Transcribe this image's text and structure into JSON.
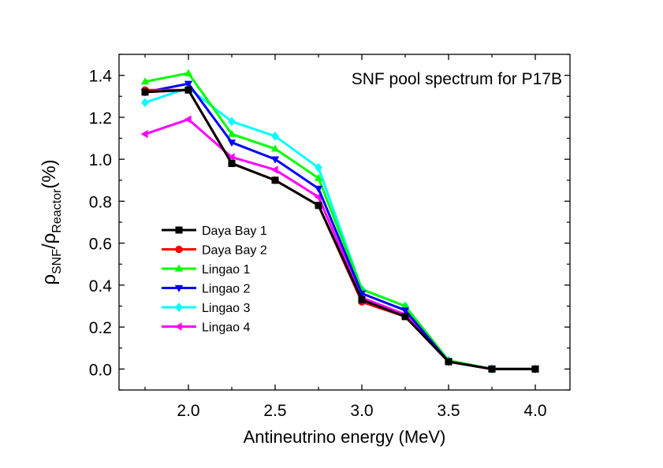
{
  "chart_data": {
    "type": "line",
    "title": "",
    "annotation": "SNF pool spectrum for P17B",
    "xlabel": "Antineutrino energy (MeV)",
    "ylabel": {
      "rho1": "ρ",
      "sub1": "SNF",
      "slash": "/",
      "rho2": "ρ",
      "sub2": "Reactor",
      "unit": "(%)"
    },
    "xlim": [
      1.6,
      4.2
    ],
    "ylim": [
      -0.1,
      1.5
    ],
    "xticks": [
      "2.0",
      "2.5",
      "3.0",
      "3.5",
      "4.0"
    ],
    "yticks": [
      "0.0",
      "0.2",
      "0.4",
      "0.6",
      "0.8",
      "1.0",
      "1.2",
      "1.4"
    ],
    "grid": false,
    "legend_position": "center-left",
    "x": [
      1.75,
      2.0,
      2.25,
      2.5,
      2.75,
      3.0,
      3.25,
      3.5,
      3.75,
      4.0
    ],
    "series": [
      {
        "name": "Daya Bay 1",
        "color": "#000000",
        "marker": "square",
        "values": [
          1.32,
          1.33,
          0.98,
          0.9,
          0.78,
          0.33,
          0.25,
          0.035,
          0.0,
          0.0
        ]
      },
      {
        "name": "Daya Bay 2",
        "color": "#ff0000",
        "marker": "circle",
        "values": [
          1.33,
          1.33,
          0.98,
          0.9,
          0.78,
          0.32,
          0.25,
          0.035,
          0.0,
          0.0
        ]
      },
      {
        "name": "Lingao 1",
        "color": "#00ff00",
        "marker": "triangle-up",
        "values": [
          1.37,
          1.41,
          1.12,
          1.05,
          0.91,
          0.38,
          0.3,
          0.04,
          0.0,
          0.0
        ]
      },
      {
        "name": "Lingao 2",
        "color": "#0000ff",
        "marker": "triangle-down",
        "values": [
          1.32,
          1.36,
          1.08,
          1.0,
          0.86,
          0.36,
          0.28,
          0.035,
          0.0,
          0.0
        ]
      },
      {
        "name": "Lingao 3",
        "color": "#00ffff",
        "marker": "diamond",
        "values": [
          1.27,
          1.34,
          1.18,
          1.11,
          0.96,
          0.38,
          0.3,
          0.04,
          0.0,
          0.0
        ]
      },
      {
        "name": "Lingao 4",
        "color": "#ff00ff",
        "marker": "triangle-left",
        "values": [
          1.12,
          1.19,
          1.01,
          0.95,
          0.82,
          0.34,
          0.26,
          0.035,
          0.0,
          0.0
        ]
      }
    ]
  }
}
